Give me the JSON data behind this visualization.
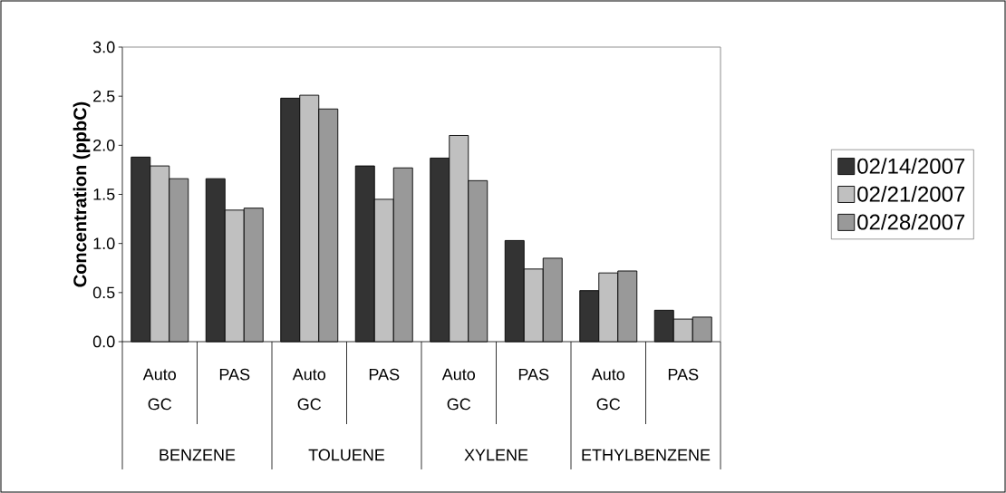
{
  "chart_data": {
    "type": "bar",
    "ylabel": "Concentration (ppbC)",
    "categories": [
      "Auto GC",
      "PAS",
      "Auto GC",
      "PAS",
      "Auto GC",
      "PAS",
      "Auto GC",
      "PAS"
    ],
    "annotations": [
      "BENZENE",
      "TOLUENE",
      "XYLENE",
      "ETHYLBENZENE"
    ],
    "series": [
      {
        "name": "02/14/2007",
        "color": "#333333",
        "values": [
          1.88,
          1.66,
          2.48,
          1.79,
          1.87,
          1.03,
          0.52,
          0.32
        ]
      },
      {
        "name": "02/21/2007",
        "color": "#c0c0c0",
        "values": [
          1.79,
          1.34,
          2.51,
          1.45,
          2.1,
          0.74,
          0.7,
          0.23
        ]
      },
      {
        "name": "02/28/2007",
        "color": "#999999",
        "values": [
          1.66,
          1.36,
          2.37,
          1.77,
          1.64,
          0.85,
          0.72,
          0.25
        ]
      }
    ],
    "ylim": [
      0,
      3
    ],
    "yticks": [
      {
        "value": 0,
        "label": "0.0"
      },
      {
        "value": 0.5,
        "label": "0.5"
      },
      {
        "value": 1,
        "label": "1.0"
      },
      {
        "value": 1.5,
        "label": "1.5"
      },
      {
        "value": 2,
        "label": "2.0"
      },
      {
        "value": 2.5,
        "label": "2.5"
      },
      {
        "value": 3,
        "label": "3.0"
      }
    ],
    "grid": false,
    "legend": "right"
  }
}
